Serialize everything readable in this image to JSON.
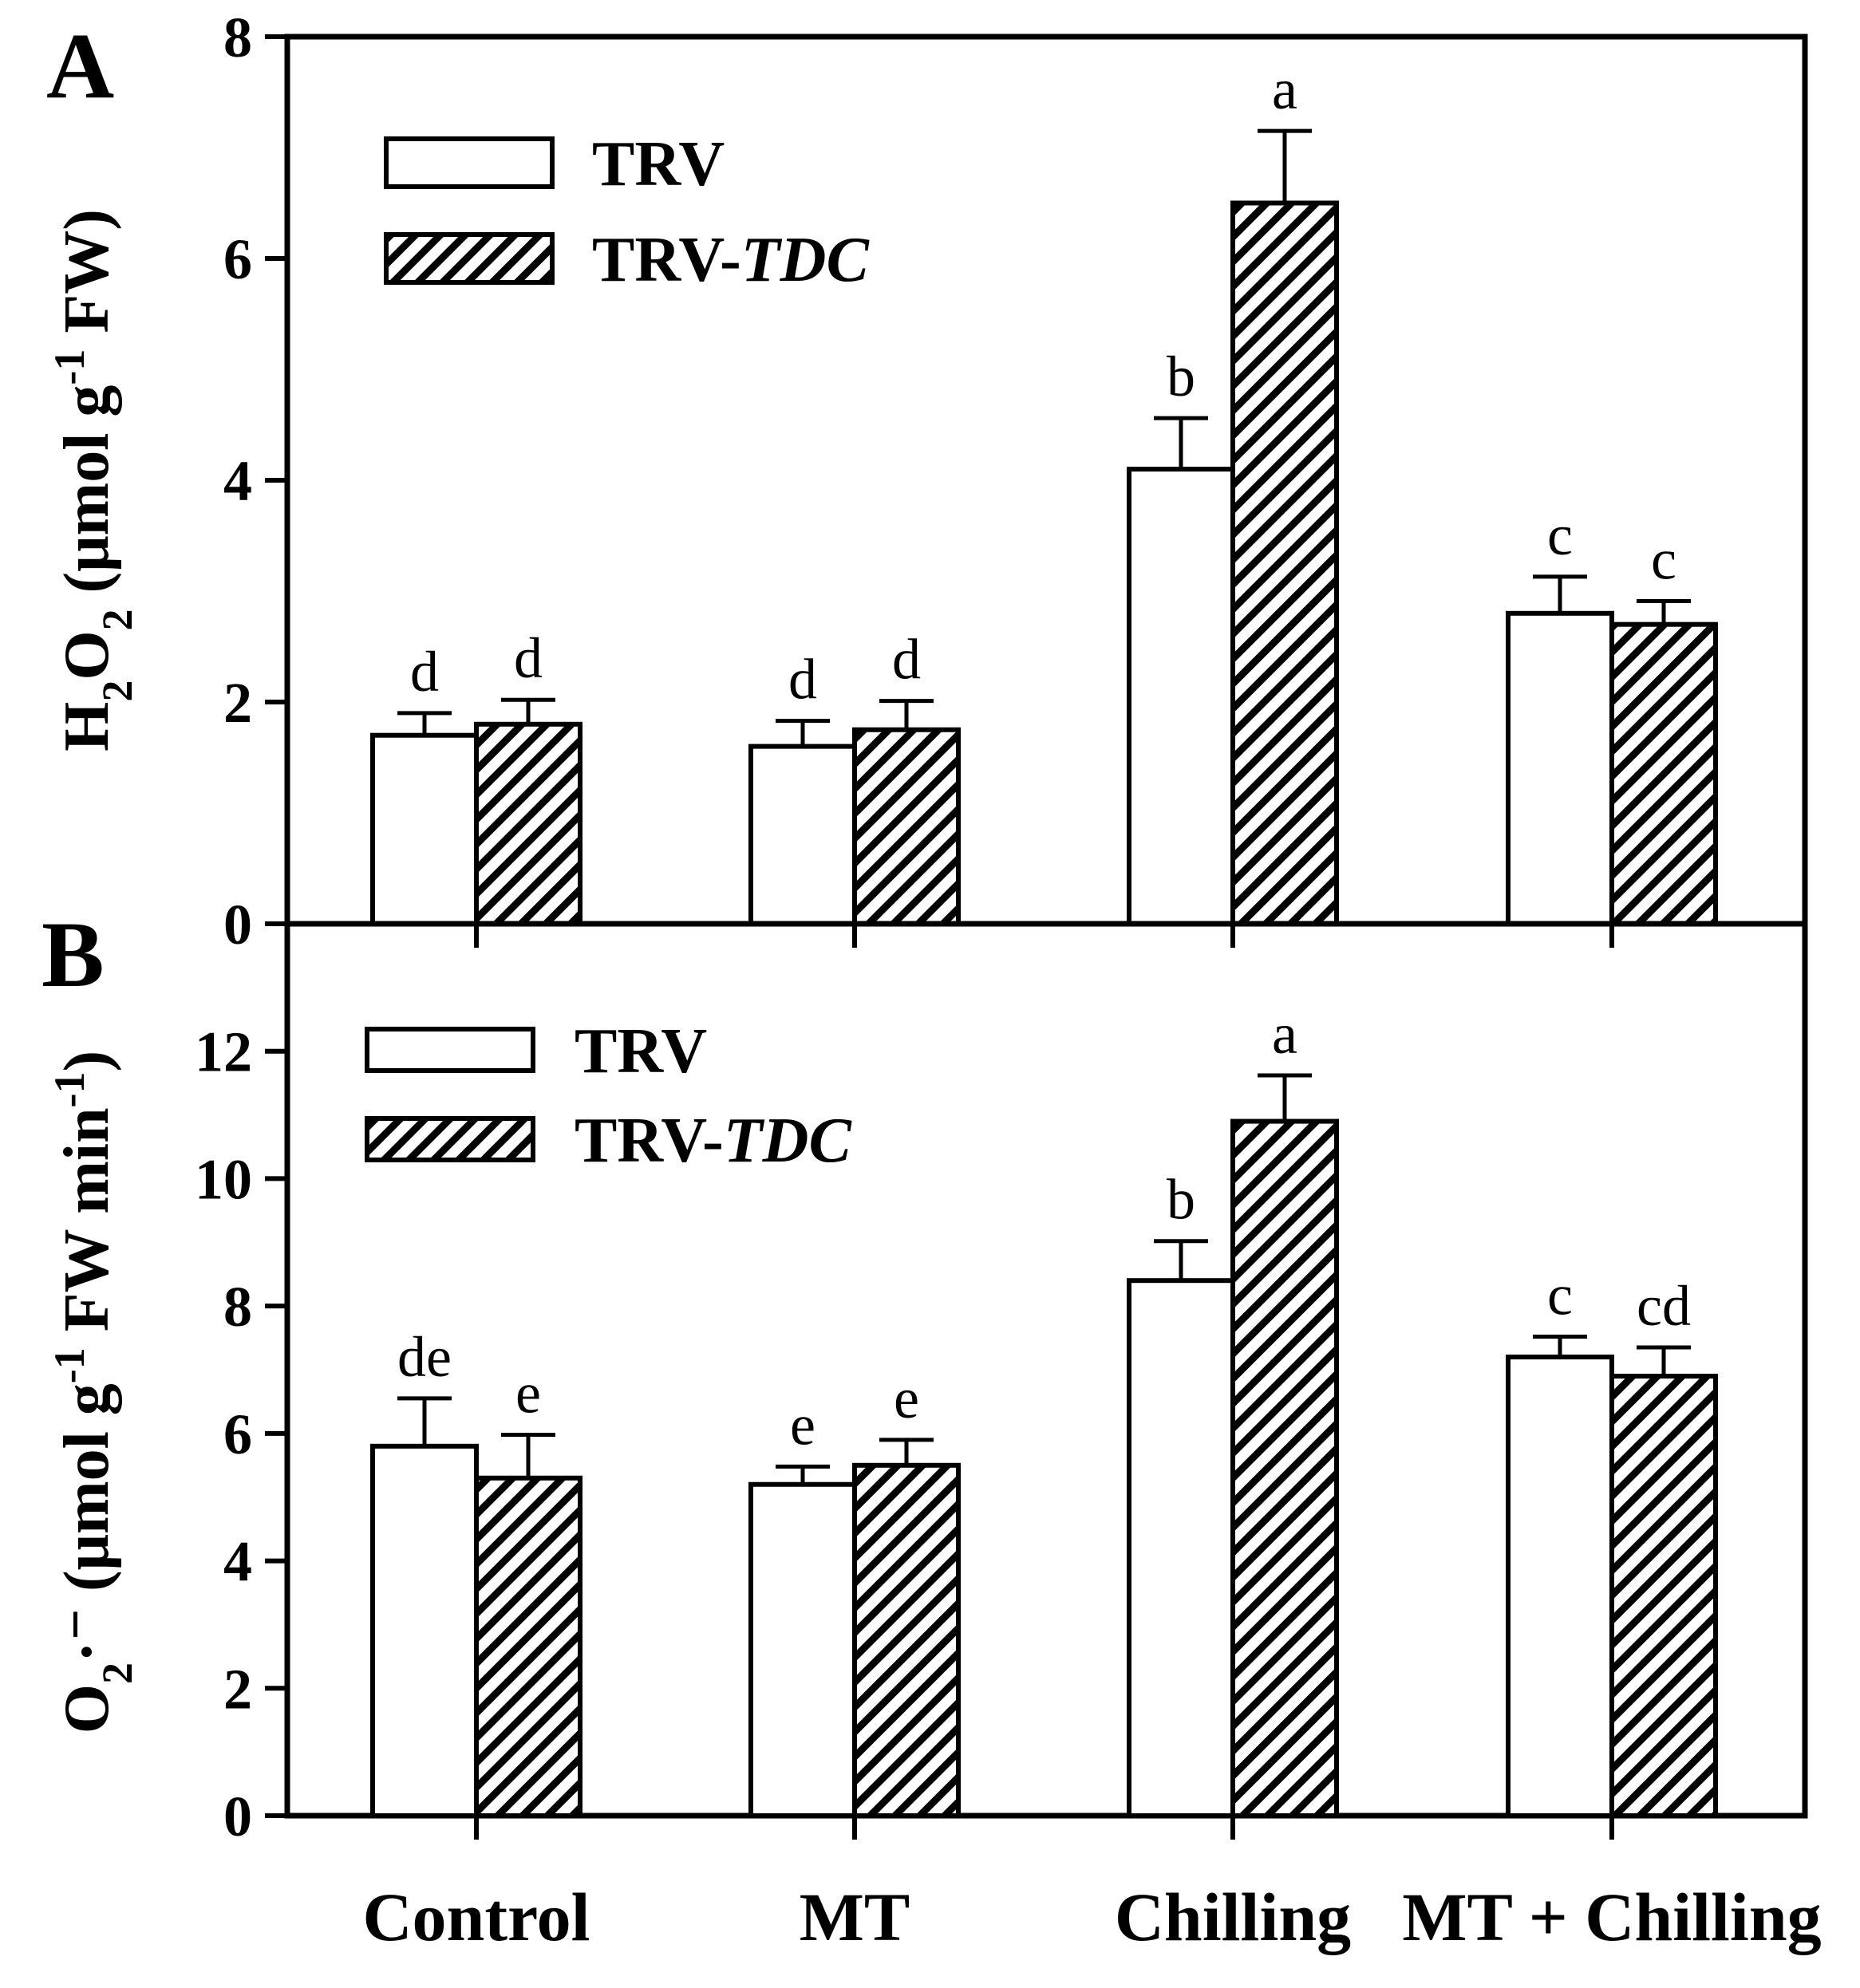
{
  "chart_data": [
    {
      "panel": "A",
      "type": "bar",
      "categories": [
        "Control",
        "MT",
        "Chilling",
        "MT + Chilling"
      ],
      "ylim": [
        0,
        8
      ],
      "yticks": [
        "0",
        "2",
        "4",
        "6",
        "8"
      ],
      "ylabel": {
        "main": "H",
        "sub1": "2",
        "mid": "O",
        "sub2": "2",
        "units_open": " (μmol g",
        "sup": "-1",
        "units_close": " FW)"
      },
      "legend": [
        {
          "label": "TRV",
          "italic": "",
          "pattern": "open"
        },
        {
          "label": "TRV-",
          "italic": "TDC",
          "pattern": "hatched"
        }
      ],
      "series": [
        {
          "name": "TRV",
          "values": [
            1.7,
            1.6,
            4.1,
            2.8
          ],
          "errors": [
            0.2,
            0.23,
            0.46,
            0.33
          ],
          "letters": [
            "d",
            "d",
            "b",
            "c"
          ]
        },
        {
          "name": "TRV-TDC",
          "values": [
            1.8,
            1.75,
            6.5,
            2.7
          ],
          "errors": [
            0.22,
            0.26,
            0.65,
            0.21
          ],
          "letters": [
            "d",
            "d",
            "a",
            "c"
          ]
        }
      ]
    },
    {
      "panel": "B",
      "type": "bar",
      "categories": [
        "Control",
        "MT",
        "Chilling",
        "MT + Chilling"
      ],
      "ylim": [
        0,
        14
      ],
      "yticks": [
        "0",
        "2",
        "4",
        "6",
        "8",
        "10",
        "12"
      ],
      "ylabel": {
        "main": "O",
        "sub1": "2",
        "mid": "·⁻",
        "sub2": "",
        "units_open": " (μmol g",
        "sup": "-1",
        "units_close": " FW min",
        "sup2": "-1",
        "units_end": ")"
      },
      "legend": [
        {
          "label": "TRV",
          "italic": "",
          "pattern": "open"
        },
        {
          "label": "TRV-",
          "italic": "TDC",
          "pattern": "hatched"
        }
      ],
      "series": [
        {
          "name": "TRV",
          "values": [
            5.8,
            5.2,
            8.4,
            7.2
          ],
          "errors": [
            0.75,
            0.28,
            0.62,
            0.32
          ],
          "letters": [
            "de",
            "e",
            "b",
            "c"
          ]
        },
        {
          "name": "TRV-TDC",
          "values": [
            5.3,
            5.5,
            10.9,
            6.9
          ],
          "errors": [
            0.68,
            0.4,
            0.72,
            0.45
          ],
          "letters": [
            "e",
            "e",
            "a",
            "cd"
          ]
        }
      ]
    }
  ],
  "panel_letters": [
    "A",
    "B"
  ],
  "x_categories": [
    "Control",
    "MT",
    "Chilling",
    "MT + Chilling"
  ]
}
